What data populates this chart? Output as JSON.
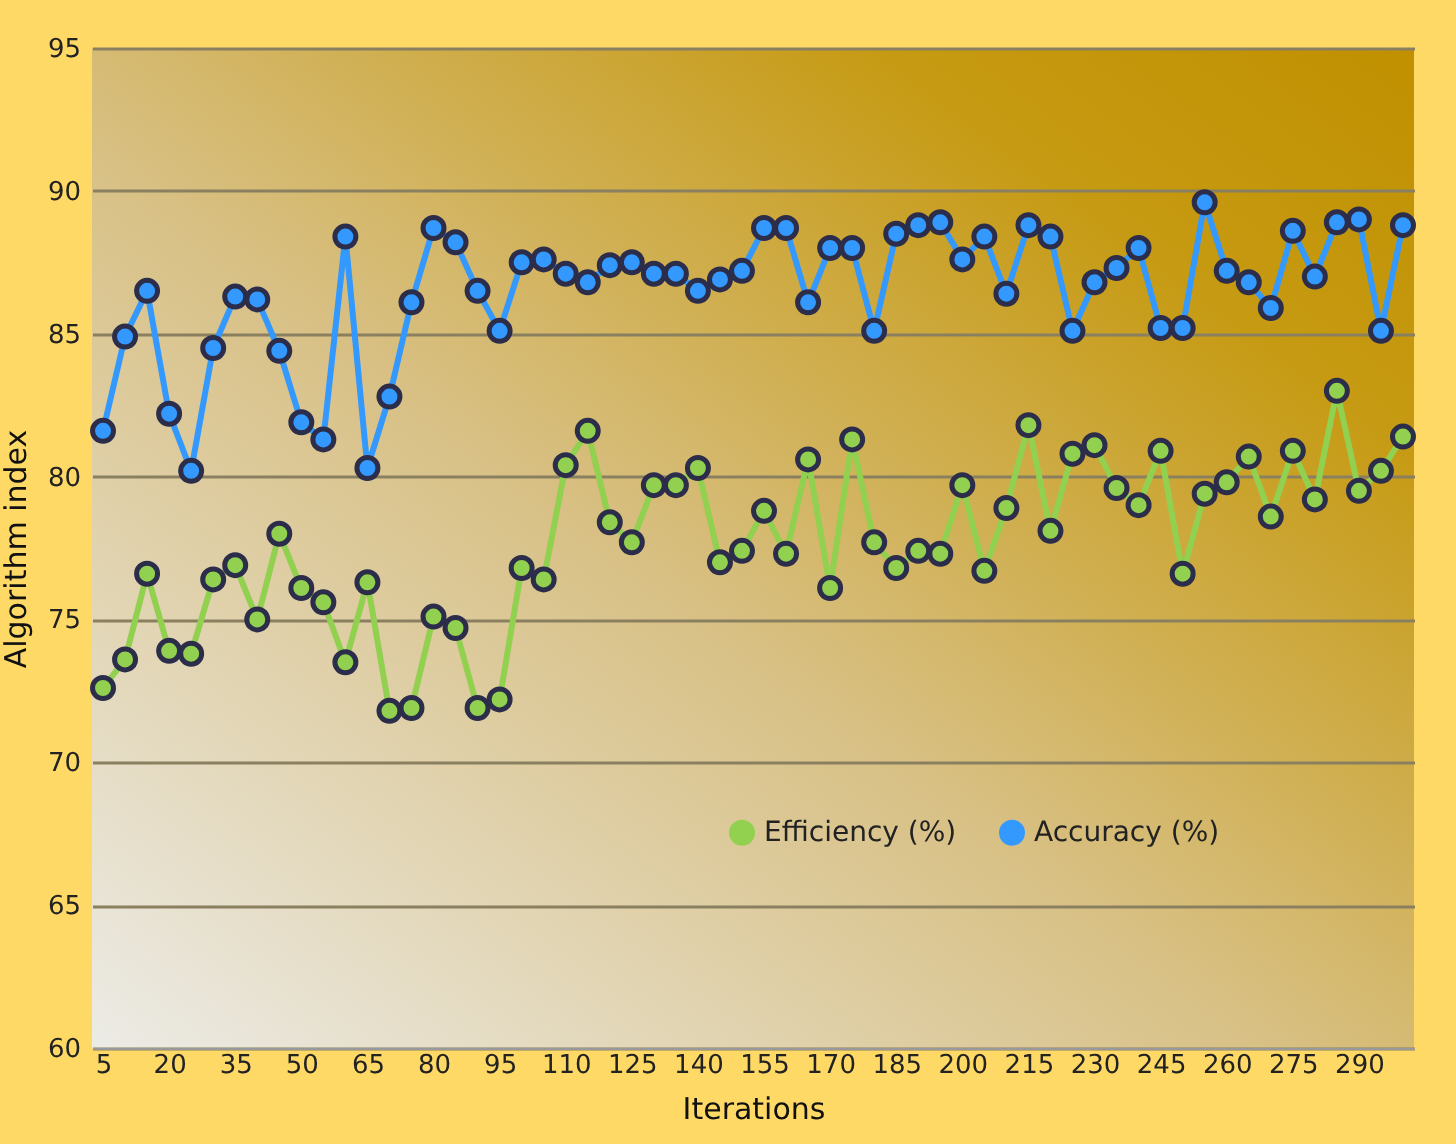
{
  "chart_data": {
    "type": "line",
    "xlabel": "Iterations",
    "ylabel": "Algorithm index",
    "categories": [
      "5",
      null,
      null,
      "20",
      null,
      null,
      "35",
      null,
      null,
      "50",
      null,
      null,
      "65",
      null,
      null,
      "80",
      null,
      null,
      "95",
      null,
      null,
      "110",
      null,
      null,
      "125",
      null,
      null,
      "140",
      null,
      null,
      "155",
      null,
      null,
      "170",
      null,
      null,
      "185",
      null,
      null,
      "200",
      null,
      null,
      "215",
      null,
      null,
      "230",
      null,
      null,
      "245",
      null,
      null,
      "260",
      null,
      null,
      "275",
      null,
      null,
      "290",
      null,
      null
    ],
    "series": [
      {
        "name": "Efficiency (%)",
        "color": "#92d050",
        "values": [
          72.6,
          73.6,
          76.6,
          73.9,
          73.8,
          76.4,
          76.9,
          75.0,
          78.0,
          76.1,
          75.6,
          73.5,
          76.3,
          71.8,
          71.9,
          75.1,
          74.7,
          71.9,
          72.2,
          76.8,
          76.4,
          80.4,
          81.6,
          78.4,
          77.7,
          79.7,
          79.7,
          80.3,
          77.0,
          77.4,
          78.8,
          77.3,
          80.6,
          76.1,
          81.3,
          77.7,
          76.8,
          77.4,
          77.3,
          79.7,
          76.7,
          78.9,
          81.8,
          78.1,
          80.8,
          81.1,
          79.6,
          79.0,
          80.9,
          76.6,
          79.4,
          79.8,
          80.7,
          78.6,
          80.9,
          79.2,
          83.0,
          79.5,
          80.2,
          81.4
        ]
      },
      {
        "name": "Accuracy (%)",
        "color": "#3399ff",
        "values": [
          81.6,
          84.9,
          86.5,
          82.2,
          80.2,
          84.5,
          86.3,
          86.2,
          84.4,
          81.9,
          81.3,
          88.4,
          80.3,
          82.8,
          86.1,
          88.7,
          88.2,
          86.5,
          85.1,
          87.5,
          87.6,
          87.1,
          86.8,
          87.4,
          87.5,
          87.1,
          87.1,
          86.5,
          86.9,
          87.2,
          88.7,
          88.7,
          86.1,
          88.0,
          88.0,
          85.1,
          88.5,
          88.8,
          88.9,
          87.6,
          88.4,
          86.4,
          88.8,
          88.4,
          85.1,
          86.8,
          87.3,
          88.0,
          85.2,
          85.2,
          89.6,
          87.2,
          86.8,
          85.9,
          88.6,
          87.0,
          88.9,
          89.0,
          85.1,
          88.8
        ]
      }
    ],
    "ylim": [
      60,
      95
    ],
    "yticks": [
      60,
      65,
      70,
      75,
      80,
      85,
      90,
      95
    ],
    "grid": "y",
    "legend": "bottom right",
    "marker": "circle",
    "line_style": "solid"
  }
}
